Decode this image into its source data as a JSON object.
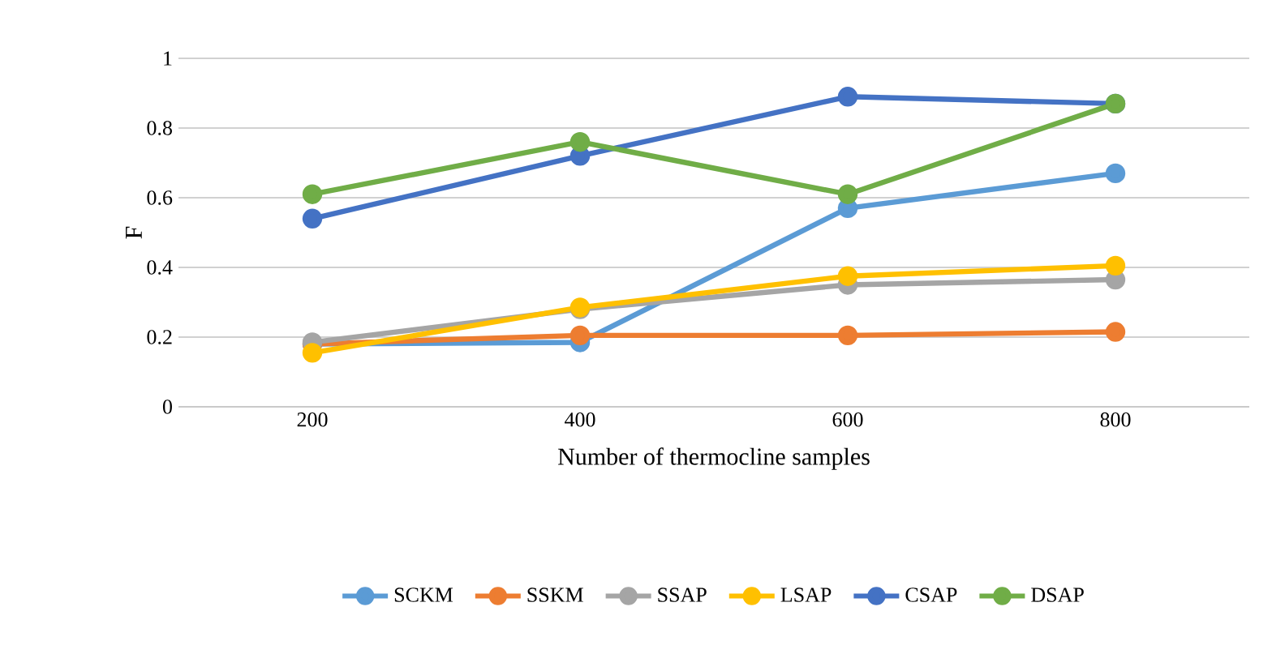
{
  "chart_data": {
    "type": "line",
    "xlabel": "Number of thermocline samples",
    "ylabel": "F",
    "categories": [
      "200",
      "400",
      "600",
      "800"
    ],
    "ylim": [
      0,
      1
    ],
    "yticks": [
      0,
      0.2,
      0.4,
      0.6,
      0.8,
      1
    ],
    "grid": "y",
    "legend": "bottom",
    "marker": "circle",
    "line_style": "solid",
    "series": [
      {
        "name": "SCKM",
        "color": "#5b9bd5",
        "values": [
          0.18,
          0.185,
          0.57,
          0.67
        ]
      },
      {
        "name": "SSKM",
        "color": "#ed7d31",
        "values": [
          0.18,
          0.205,
          0.205,
          0.215
        ]
      },
      {
        "name": "SSAP",
        "color": "#a5a5a5",
        "values": [
          0.185,
          0.28,
          0.35,
          0.365
        ]
      },
      {
        "name": "LSAP",
        "color": "#ffc000",
        "values": [
          0.155,
          0.285,
          0.375,
          0.405
        ]
      },
      {
        "name": "CSAP",
        "color": "#4472c4",
        "values": [
          0.54,
          0.72,
          0.89,
          0.87
        ]
      },
      {
        "name": "DSAP",
        "color": "#70ad47",
        "values": [
          0.61,
          0.76,
          0.61,
          0.87
        ]
      }
    ]
  }
}
